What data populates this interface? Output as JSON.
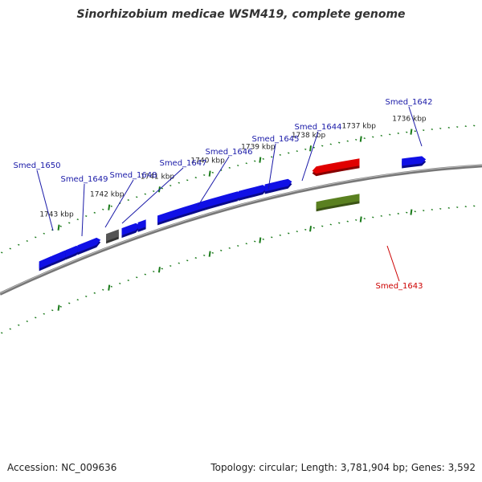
{
  "title": "Sinorhizobium medicae WSM419, complete genome",
  "footer": {
    "accession": "Accession: NC_009636",
    "summary": "Topology: circular; Length: 3,781,904 bp; Genes: 3,592"
  },
  "colors": {
    "cds": "#1010e6",
    "pseudo": "#555555",
    "rna": "#e00000",
    "rna_gene": "#5a8020",
    "backbone": "#777777",
    "tick": "#1a7a1a",
    "label_line_cds": "#1a1aa8",
    "label_line_rna": "#cc0000"
  },
  "scale": {
    "unit": "kbp",
    "ticks": [
      {
        "kbp": 1736,
        "label": "1736 kbp"
      },
      {
        "kbp": 1737,
        "label": "1737 kbp"
      },
      {
        "kbp": 1738,
        "label": "1738 kbp"
      },
      {
        "kbp": 1739,
        "label": "1739 kbp"
      },
      {
        "kbp": 1740,
        "label": "1740 kbp"
      },
      {
        "kbp": 1741,
        "label": "1741 kbp"
      },
      {
        "kbp": 1742,
        "label": "1742 kbp"
      },
      {
        "kbp": 1743,
        "label": "1743 kbp"
      }
    ]
  },
  "features": [
    {
      "id": "cds-a",
      "type": "cds",
      "strand": "plus",
      "start": 1743.38,
      "end": 1743.13
    },
    {
      "id": "cds-b",
      "type": "cds",
      "strand": "plus",
      "start": 1743.12,
      "end": 1742.87
    },
    {
      "id": "cds-c",
      "type": "cds",
      "strand": "plus",
      "start": 1742.86,
      "end": 1742.64
    },
    {
      "id": "cds-d",
      "type": "cds",
      "strand": "plus",
      "start": 1742.62,
      "end": 1742.24
    },
    {
      "id": "Smed_1650",
      "type": "pseudo",
      "strand": "plus",
      "start": 1742.24,
      "end": 1742.24,
      "name": "Smed_1650"
    },
    {
      "id": "Smed_1649",
      "type": "pseudo",
      "strand": "plus",
      "start": 1742.05,
      "end": 1741.8,
      "name": "Smed_1649"
    },
    {
      "id": "Smed_1648",
      "type": "cds",
      "strand": "plus",
      "start": 1741.74,
      "end": 1741.46,
      "name": "Smed_1648"
    },
    {
      "id": "Smed_1647",
      "type": "cds",
      "strand": "plus",
      "start": 1741.42,
      "end": 1741.26,
      "name": "Smed_1647"
    },
    {
      "id": "Smed_1646",
      "type": "cds",
      "strand": "plus",
      "start": 1741.03,
      "end": 1739.44,
      "name": "Smed_1646"
    },
    {
      "id": "Smed_1645",
      "type": "cds",
      "strand": "plus",
      "start": 1739.42,
      "end": 1738.94,
      "name": "Smed_1645"
    },
    {
      "id": "Smed_1644",
      "type": "cds",
      "strand": "plus",
      "start": 1738.9,
      "end": 1738.44,
      "name": "Smed_1644"
    },
    {
      "id": "Smed_1643",
      "type": "rna",
      "strand": "minus",
      "start": 1737.88,
      "end": 1737.02,
      "name": "Smed_1643"
    },
    {
      "id": "Smed_1642",
      "type": "cds",
      "strand": "plus",
      "start": 1736.18,
      "end": 1735.78,
      "name": "Smed_1642"
    }
  ]
}
